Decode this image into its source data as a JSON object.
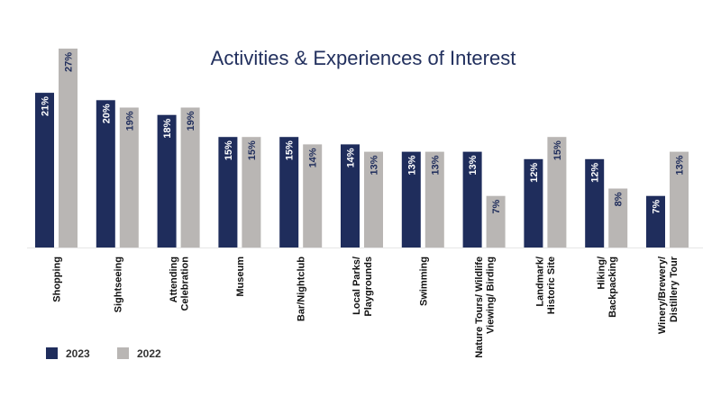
{
  "chart_data": {
    "type": "bar",
    "title": "Activities & Experiences of Interest",
    "categories": [
      [
        "Shopping"
      ],
      [
        "Sightseeing"
      ],
      [
        "Attending",
        "Celebration"
      ],
      [
        "Museum"
      ],
      [
        "Bar/Nightclub"
      ],
      [
        "Local Parks/",
        "Playgrounds"
      ],
      [
        "Swimming"
      ],
      [
        "Nature Tours/ Wildlife",
        "Viewing/ Birding"
      ],
      [
        "Landmark/",
        "Historic Site"
      ],
      [
        "Hiking/",
        "Backpacking"
      ],
      [
        "Winery/Brewery/",
        "Distillery Tour"
      ]
    ],
    "series": [
      {
        "name": "2023",
        "color": "#1f2d5c",
        "label_color": "#ffffff",
        "values": [
          21,
          20,
          18,
          15,
          15,
          14,
          13,
          13,
          12,
          12,
          7
        ]
      },
      {
        "name": "2022",
        "color": "#b9b6b4",
        "label_color": "#1f2d5c",
        "values": [
          27,
          19,
          19,
          15,
          14,
          13,
          13,
          7,
          15,
          8,
          13
        ]
      }
    ],
    "value_suffix": "%",
    "ylim": [
      0,
      27
    ],
    "grid": false,
    "legend_position": "bottom-left"
  }
}
